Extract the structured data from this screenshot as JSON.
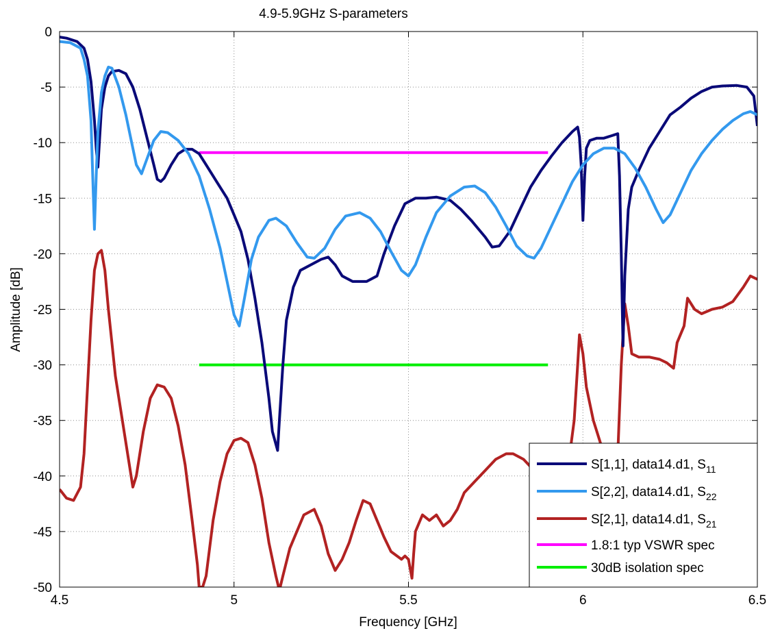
{
  "chart_data": {
    "type": "line",
    "title": "4.9-5.9GHz S-parameters",
    "xlabel": "Frequency [GHz]",
    "ylabel": "Amplitude [dB]",
    "xlim": [
      4.5,
      6.5
    ],
    "ylim": [
      -50,
      0
    ],
    "xticks": [
      4.5,
      5,
      5.5,
      6,
      6.5
    ],
    "xtick_labels": [
      "4.5",
      "5",
      "5.5",
      "6",
      "6.5"
    ],
    "yticks": [
      0,
      -5,
      -10,
      -15,
      -20,
      -25,
      -30,
      -35,
      -40,
      -45,
      -50
    ],
    "ytick_labels": [
      "0",
      "-5",
      "-10",
      "-15",
      "-20",
      "-25",
      "-30",
      "-35",
      "-40",
      "-45",
      "-50"
    ],
    "grid": true,
    "grid_style": "dotted",
    "legend_position": "bottom-right",
    "series": [
      {
        "name": "S[1,1], data14.d1, S11",
        "legend_main": "S[1,1], data14.d1, S",
        "legend_sub": "11",
        "color": "#0a0a78",
        "points": [
          [
            4.5,
            -0.5
          ],
          [
            4.52,
            -0.6
          ],
          [
            4.55,
            -0.9
          ],
          [
            4.57,
            -1.5
          ],
          [
            4.58,
            -2.5
          ],
          [
            4.59,
            -4.5
          ],
          [
            4.6,
            -8
          ],
          [
            4.605,
            -10.5
          ],
          [
            4.61,
            -12.2
          ],
          [
            4.615,
            -9.5
          ],
          [
            4.62,
            -7
          ],
          [
            4.63,
            -5
          ],
          [
            4.64,
            -4
          ],
          [
            4.65,
            -3.6
          ],
          [
            4.67,
            -3.5
          ],
          [
            4.69,
            -3.8
          ],
          [
            4.71,
            -5
          ],
          [
            4.73,
            -7
          ],
          [
            4.75,
            -9.5
          ],
          [
            4.77,
            -12
          ],
          [
            4.78,
            -13.3
          ],
          [
            4.79,
            -13.5
          ],
          [
            4.8,
            -13.2
          ],
          [
            4.82,
            -12
          ],
          [
            4.84,
            -11
          ],
          [
            4.86,
            -10.6
          ],
          [
            4.88,
            -10.6
          ],
          [
            4.9,
            -11
          ],
          [
            4.92,
            -12
          ],
          [
            4.95,
            -13.5
          ],
          [
            4.98,
            -15
          ],
          [
            5.0,
            -16.5
          ],
          [
            5.02,
            -18
          ],
          [
            5.04,
            -20.5
          ],
          [
            5.06,
            -24
          ],
          [
            5.08,
            -28
          ],
          [
            5.1,
            -33
          ],
          [
            5.11,
            -36
          ],
          [
            5.125,
            -37.7
          ],
          [
            5.13,
            -35
          ],
          [
            5.14,
            -30
          ],
          [
            5.15,
            -26
          ],
          [
            5.17,
            -23
          ],
          [
            5.19,
            -21.5
          ],
          [
            5.22,
            -21
          ],
          [
            5.25,
            -20.5
          ],
          [
            5.27,
            -20.3
          ],
          [
            5.29,
            -21
          ],
          [
            5.31,
            -22
          ],
          [
            5.34,
            -22.5
          ],
          [
            5.38,
            -22.5
          ],
          [
            5.41,
            -22
          ],
          [
            5.43,
            -20
          ],
          [
            5.46,
            -17.5
          ],
          [
            5.49,
            -15.5
          ],
          [
            5.52,
            -15
          ],
          [
            5.55,
            -15
          ],
          [
            5.58,
            -14.9
          ],
          [
            5.62,
            -15.2
          ],
          [
            5.65,
            -16
          ],
          [
            5.68,
            -17
          ],
          [
            5.72,
            -18.5
          ],
          [
            5.74,
            -19.4
          ],
          [
            5.76,
            -19.3
          ],
          [
            5.79,
            -18
          ],
          [
            5.82,
            -16
          ],
          [
            5.85,
            -14
          ],
          [
            5.88,
            -12.5
          ],
          [
            5.91,
            -11.2
          ],
          [
            5.94,
            -10
          ],
          [
            5.97,
            -9
          ],
          [
            5.985,
            -8.6
          ],
          [
            5.99,
            -9.5
          ],
          [
            5.995,
            -12
          ],
          [
            6.0,
            -17
          ],
          [
            6.005,
            -13
          ],
          [
            6.01,
            -10.5
          ],
          [
            6.02,
            -9.8
          ],
          [
            6.04,
            -9.6
          ],
          [
            6.06,
            -9.6
          ],
          [
            6.08,
            -9.4
          ],
          [
            6.1,
            -9.2
          ],
          [
            6.105,
            -13
          ],
          [
            6.11,
            -20
          ],
          [
            6.115,
            -28.3
          ],
          [
            6.12,
            -22
          ],
          [
            6.13,
            -16
          ],
          [
            6.14,
            -14
          ],
          [
            6.16,
            -12.5
          ],
          [
            6.19,
            -10.5
          ],
          [
            6.22,
            -9
          ],
          [
            6.25,
            -7.5
          ],
          [
            6.28,
            -6.8
          ],
          [
            6.31,
            -6
          ],
          [
            6.34,
            -5.4
          ],
          [
            6.37,
            -5
          ],
          [
            6.4,
            -4.9
          ],
          [
            6.44,
            -4.85
          ],
          [
            6.47,
            -5
          ],
          [
            6.49,
            -5.8
          ],
          [
            6.5,
            -8.5
          ]
        ]
      },
      {
        "name": "S[2,2], data14.d1, S22",
        "legend_main": "S[2,2], data14.d1, S",
        "legend_sub": "22",
        "color": "#3399ee",
        "points": [
          [
            4.5,
            -0.9
          ],
          [
            4.53,
            -1
          ],
          [
            4.56,
            -1.5
          ],
          [
            4.57,
            -2.5
          ],
          [
            4.58,
            -4
          ],
          [
            4.59,
            -8
          ],
          [
            4.595,
            -13
          ],
          [
            4.6,
            -17.8
          ],
          [
            4.605,
            -13
          ],
          [
            4.61,
            -9
          ],
          [
            4.62,
            -5.5
          ],
          [
            4.63,
            -4
          ],
          [
            4.64,
            -3.2
          ],
          [
            4.65,
            -3.3
          ],
          [
            4.67,
            -5
          ],
          [
            4.69,
            -7.5
          ],
          [
            4.71,
            -10.5
          ],
          [
            4.72,
            -12
          ],
          [
            4.735,
            -12.8
          ],
          [
            4.75,
            -11.5
          ],
          [
            4.77,
            -9.8
          ],
          [
            4.79,
            -9
          ],
          [
            4.81,
            -9.1
          ],
          [
            4.84,
            -9.8
          ],
          [
            4.87,
            -11
          ],
          [
            4.9,
            -13
          ],
          [
            4.93,
            -16
          ],
          [
            4.96,
            -19.5
          ],
          [
            4.98,
            -22.5
          ],
          [
            5.0,
            -25.5
          ],
          [
            5.015,
            -26.5
          ],
          [
            5.03,
            -24
          ],
          [
            5.05,
            -20.5
          ],
          [
            5.07,
            -18.5
          ],
          [
            5.1,
            -17
          ],
          [
            5.12,
            -16.8
          ],
          [
            5.15,
            -17.5
          ],
          [
            5.18,
            -19
          ],
          [
            5.21,
            -20.3
          ],
          [
            5.23,
            -20.4
          ],
          [
            5.26,
            -19.5
          ],
          [
            5.29,
            -17.8
          ],
          [
            5.32,
            -16.6
          ],
          [
            5.36,
            -16.3
          ],
          [
            5.39,
            -16.8
          ],
          [
            5.42,
            -18
          ],
          [
            5.45,
            -19.8
          ],
          [
            5.48,
            -21.5
          ],
          [
            5.5,
            -22
          ],
          [
            5.52,
            -21
          ],
          [
            5.55,
            -18.5
          ],
          [
            5.58,
            -16.3
          ],
          [
            5.62,
            -14.8
          ],
          [
            5.66,
            -14
          ],
          [
            5.69,
            -13.9
          ],
          [
            5.72,
            -14.5
          ],
          [
            5.75,
            -15.8
          ],
          [
            5.78,
            -17.5
          ],
          [
            5.81,
            -19.3
          ],
          [
            5.84,
            -20.2
          ],
          [
            5.86,
            -20.4
          ],
          [
            5.88,
            -19.5
          ],
          [
            5.91,
            -17.5
          ],
          [
            5.94,
            -15.5
          ],
          [
            5.97,
            -13.5
          ],
          [
            6.0,
            -12
          ],
          [
            6.03,
            -11
          ],
          [
            6.06,
            -10.5
          ],
          [
            6.09,
            -10.5
          ],
          [
            6.12,
            -11
          ],
          [
            6.15,
            -12.3
          ],
          [
            6.18,
            -14
          ],
          [
            6.21,
            -16
          ],
          [
            6.23,
            -17.2
          ],
          [
            6.25,
            -16.5
          ],
          [
            6.28,
            -14.5
          ],
          [
            6.31,
            -12.5
          ],
          [
            6.34,
            -11
          ],
          [
            6.37,
            -9.8
          ],
          [
            6.4,
            -8.8
          ],
          [
            6.43,
            -8
          ],
          [
            6.46,
            -7.4
          ],
          [
            6.48,
            -7.2
          ],
          [
            6.5,
            -7.5
          ]
        ]
      },
      {
        "name": "S[2,1], data14.d1, S21",
        "legend_main": "S[2,1], data14.d1, S",
        "legend_sub": "21",
        "color": "#b22222",
        "points": [
          [
            4.5,
            -41.2
          ],
          [
            4.52,
            -42
          ],
          [
            4.54,
            -42.2
          ],
          [
            4.56,
            -41
          ],
          [
            4.57,
            -38
          ],
          [
            4.58,
            -32
          ],
          [
            4.59,
            -26
          ],
          [
            4.6,
            -21.5
          ],
          [
            4.61,
            -20
          ],
          [
            4.62,
            -19.7
          ],
          [
            4.63,
            -21.5
          ],
          [
            4.64,
            -25
          ],
          [
            4.66,
            -31
          ],
          [
            4.68,
            -35
          ],
          [
            4.7,
            -39
          ],
          [
            4.71,
            -41
          ],
          [
            4.72,
            -40
          ],
          [
            4.74,
            -36
          ],
          [
            4.76,
            -33
          ],
          [
            4.78,
            -31.8
          ],
          [
            4.8,
            -32
          ],
          [
            4.82,
            -33
          ],
          [
            4.84,
            -35.5
          ],
          [
            4.86,
            -39
          ],
          [
            4.88,
            -44
          ],
          [
            4.895,
            -48
          ],
          [
            4.9,
            -50
          ],
          [
            4.91,
            -50
          ],
          [
            4.92,
            -49
          ],
          [
            4.94,
            -44
          ],
          [
            4.96,
            -40.5
          ],
          [
            4.98,
            -38
          ],
          [
            5.0,
            -36.8
          ],
          [
            5.02,
            -36.6
          ],
          [
            5.04,
            -37
          ],
          [
            5.06,
            -39
          ],
          [
            5.08,
            -42
          ],
          [
            5.1,
            -46
          ],
          [
            5.12,
            -49
          ],
          [
            5.13,
            -50.3
          ],
          [
            5.14,
            -49
          ],
          [
            5.16,
            -46.5
          ],
          [
            5.18,
            -45
          ],
          [
            5.2,
            -43.5
          ],
          [
            5.23,
            -43
          ],
          [
            5.25,
            -44.5
          ],
          [
            5.27,
            -47
          ],
          [
            5.29,
            -48.5
          ],
          [
            5.31,
            -47.5
          ],
          [
            5.33,
            -46
          ],
          [
            5.35,
            -44
          ],
          [
            5.37,
            -42.2
          ],
          [
            5.39,
            -42.5
          ],
          [
            5.41,
            -44
          ],
          [
            5.43,
            -45.5
          ],
          [
            5.45,
            -46.8
          ],
          [
            5.48,
            -47.5
          ],
          [
            5.49,
            -47.2
          ],
          [
            5.5,
            -47.5
          ],
          [
            5.51,
            -49.2
          ],
          [
            5.515,
            -47
          ],
          [
            5.52,
            -45
          ],
          [
            5.54,
            -43.5
          ],
          [
            5.56,
            -44
          ],
          [
            5.58,
            -43.5
          ],
          [
            5.6,
            -44.5
          ],
          [
            5.62,
            -44
          ],
          [
            5.64,
            -43
          ],
          [
            5.66,
            -41.5
          ],
          [
            5.69,
            -40.5
          ],
          [
            5.72,
            -39.5
          ],
          [
            5.75,
            -38.5
          ],
          [
            5.78,
            -38
          ],
          [
            5.8,
            -38
          ],
          [
            5.83,
            -38.5
          ],
          [
            5.86,
            -39.5
          ],
          [
            5.89,
            -39.5
          ],
          [
            5.92,
            -40.5
          ],
          [
            5.95,
            -41
          ],
          [
            5.975,
            -35
          ],
          [
            5.985,
            -30
          ],
          [
            5.99,
            -27.3
          ],
          [
            6.0,
            -29
          ],
          [
            6.01,
            -32
          ],
          [
            6.03,
            -35
          ],
          [
            6.05,
            -37
          ],
          [
            6.07,
            -39
          ],
          [
            6.09,
            -41
          ],
          [
            6.1,
            -38
          ],
          [
            6.11,
            -30
          ],
          [
            6.12,
            -24.5
          ],
          [
            6.13,
            -26.5
          ],
          [
            6.14,
            -29
          ],
          [
            6.16,
            -29.3
          ],
          [
            6.19,
            -29.3
          ],
          [
            6.22,
            -29.5
          ],
          [
            6.24,
            -29.8
          ],
          [
            6.26,
            -30.3
          ],
          [
            6.27,
            -28
          ],
          [
            6.29,
            -26.5
          ],
          [
            6.3,
            -24
          ],
          [
            6.32,
            -25
          ],
          [
            6.34,
            -25.4
          ],
          [
            6.37,
            -25
          ],
          [
            6.4,
            -24.8
          ],
          [
            6.43,
            -24.3
          ],
          [
            6.46,
            -23
          ],
          [
            6.48,
            -22
          ],
          [
            6.5,
            -22.3
          ]
        ]
      },
      {
        "name": "1.8:1 typ VSWR spec",
        "legend_main": "1.8:1 typ VSWR spec",
        "legend_sub": "",
        "color": "#ff00ff",
        "points": [
          [
            4.9,
            -10.9
          ],
          [
            5.9,
            -10.9
          ]
        ]
      },
      {
        "name": "30dB isolation spec",
        "legend_main": "30dB isolation spec",
        "legend_sub": "",
        "color": "#00ee00",
        "points": [
          [
            4.9,
            -30
          ],
          [
            5.9,
            -30
          ]
        ]
      }
    ]
  }
}
